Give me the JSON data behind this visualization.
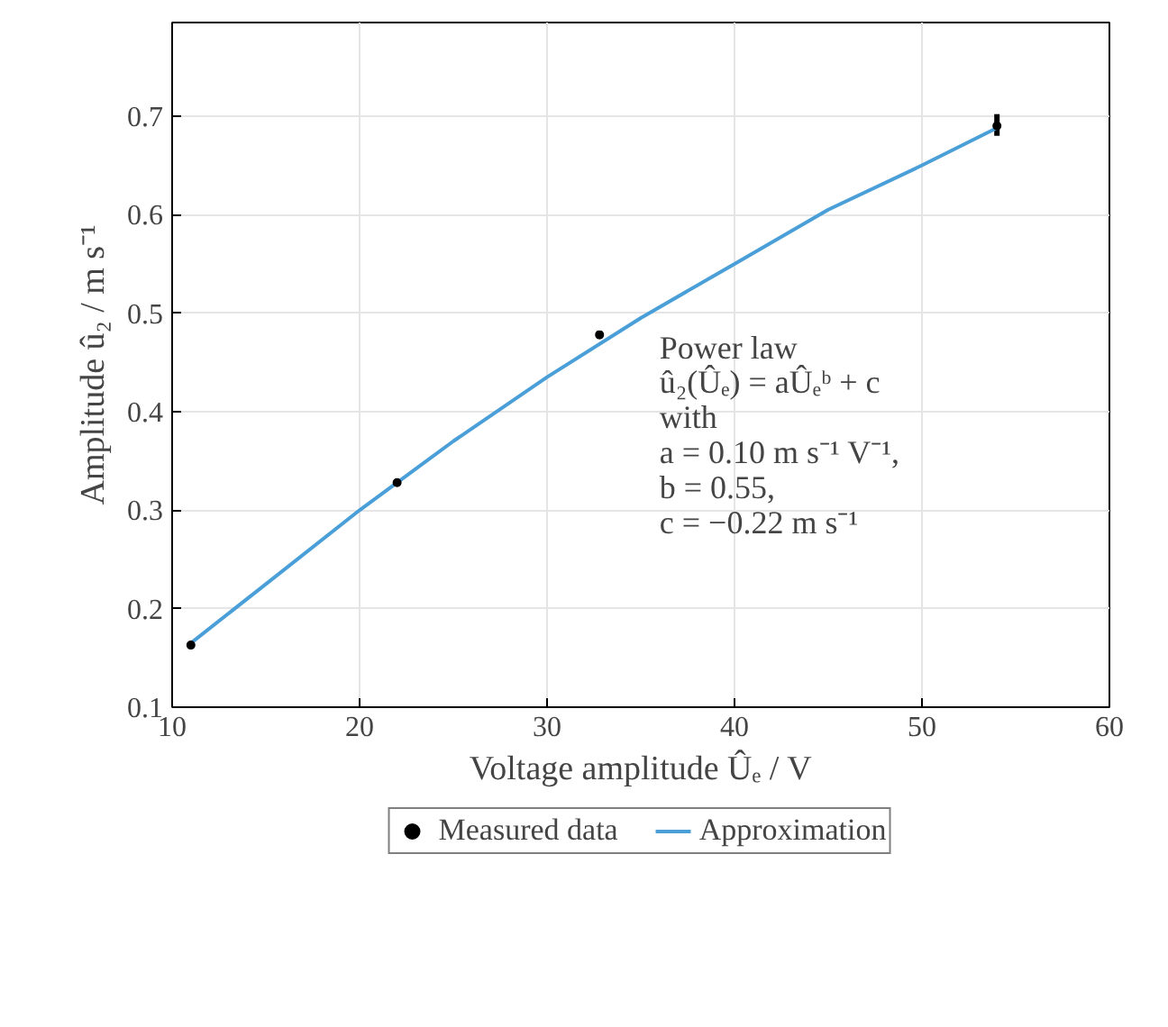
{
  "chart_data": {
    "type": "scatter",
    "xlabel": "Voltage amplitude Ûₑ / V",
    "ylabel": "Amplitude û₂ / m s⁻¹",
    "xlim": [
      10,
      60
    ],
    "xticks": [
      10,
      20,
      30,
      40,
      50,
      60
    ],
    "ylim": [
      0.1,
      0.795
    ],
    "yticks": [
      0.1,
      0.2,
      0.3,
      0.4,
      0.5,
      0.6,
      0.7
    ],
    "grid": true,
    "legend": "bottom",
    "series": [
      {
        "name": "Measured data",
        "color": "#000000",
        "marker": "circle",
        "x": [
          11,
          22,
          32.8,
          54
        ],
        "values": [
          0.163,
          0.328,
          0.478,
          0.69
        ],
        "errors": [
          0.002,
          0.003,
          0.004,
          [
            0.68,
            0.702
          ]
        ]
      },
      {
        "name": "Approximation",
        "type": "line",
        "color": "#4a9fd8",
        "line_style": "solid",
        "x": [
          11,
          15,
          20,
          25,
          30,
          35,
          40,
          45,
          50,
          54
        ],
        "values": [
          0.165,
          0.225,
          0.3,
          0.37,
          0.435,
          0.495,
          0.55,
          0.605,
          0.65,
          0.688
        ]
      }
    ],
    "annotations": [
      "Power law",
      "û₂(Ûₑ) = aÛₑᵇ + c",
      "with",
      "a = 0.10 m s⁻¹ V⁻¹,",
      "b = 0.55,",
      "c = −0.22 m s⁻¹"
    ]
  }
}
